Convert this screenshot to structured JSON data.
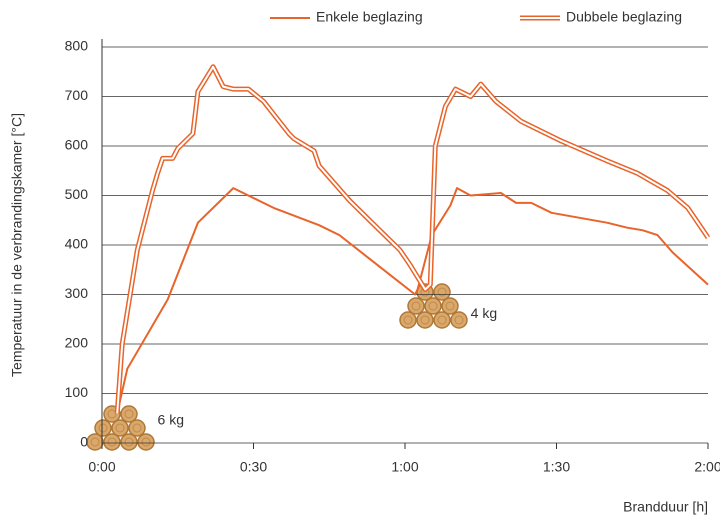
{
  "chart_data": {
    "type": "line",
    "x_label": "Brandduur [h]",
    "y_label": "Temperatuur in de verbrandingskamer [°C]",
    "xlim": [
      0,
      120
    ],
    "xticks": [
      {
        "value": 0,
        "label": "0:00"
      },
      {
        "value": 30,
        "label": "0:30"
      },
      {
        "value": 60,
        "label": "1:00"
      },
      {
        "value": 90,
        "label": "1:30"
      },
      {
        "value": 120,
        "label": "2:00"
      }
    ],
    "ylim": [
      0,
      800
    ],
    "yticks": [
      0,
      100,
      200,
      300,
      400,
      500,
      600,
      700,
      800
    ],
    "grid": true,
    "legend": "top-right",
    "annotations": [
      {
        "text": "6 kg",
        "x": 11,
        "y": 45
      },
      {
        "text": "4 kg",
        "x": 73,
        "y": 260
      }
    ],
    "series": [
      {
        "name": "Enkele beglazing",
        "color": "#e8642a",
        "style": "single",
        "x": [
          3,
          5,
          13,
          19,
          26,
          34,
          43,
          47,
          57,
          62,
          62.5,
          65.3,
          69,
          70.3,
          73,
          79,
          82,
          85,
          89,
          100,
          104,
          107,
          110,
          113,
          120
        ],
        "values": [
          60,
          150,
          290,
          445,
          515,
          475,
          440,
          420,
          340,
          300,
          310,
          420,
          480,
          515,
          500,
          505,
          485,
          485,
          465,
          445,
          435,
          430,
          420,
          385,
          320
        ]
      },
      {
        "name": "Dubbele beglazing",
        "color": "#e8642a",
        "style": "double",
        "x": [
          3,
          4,
          7,
          10,
          11,
          12,
          14,
          15,
          18,
          19,
          22,
          24,
          26,
          29,
          32,
          37,
          38,
          42,
          43,
          49,
          53,
          59,
          61,
          64,
          65,
          66,
          68,
          70,
          73,
          75,
          78,
          83,
          91,
          100,
          106,
          112,
          116,
          119,
          120
        ],
        "values": [
          60,
          200,
          390,
          510,
          545,
          575,
          575,
          595,
          625,
          710,
          760,
          720,
          715,
          715,
          690,
          625,
          615,
          590,
          560,
          490,
          450,
          390,
          360,
          310,
          320,
          600,
          680,
          715,
          700,
          725,
          690,
          650,
          610,
          570,
          545,
          510,
          475,
          430,
          415
        ]
      }
    ]
  }
}
